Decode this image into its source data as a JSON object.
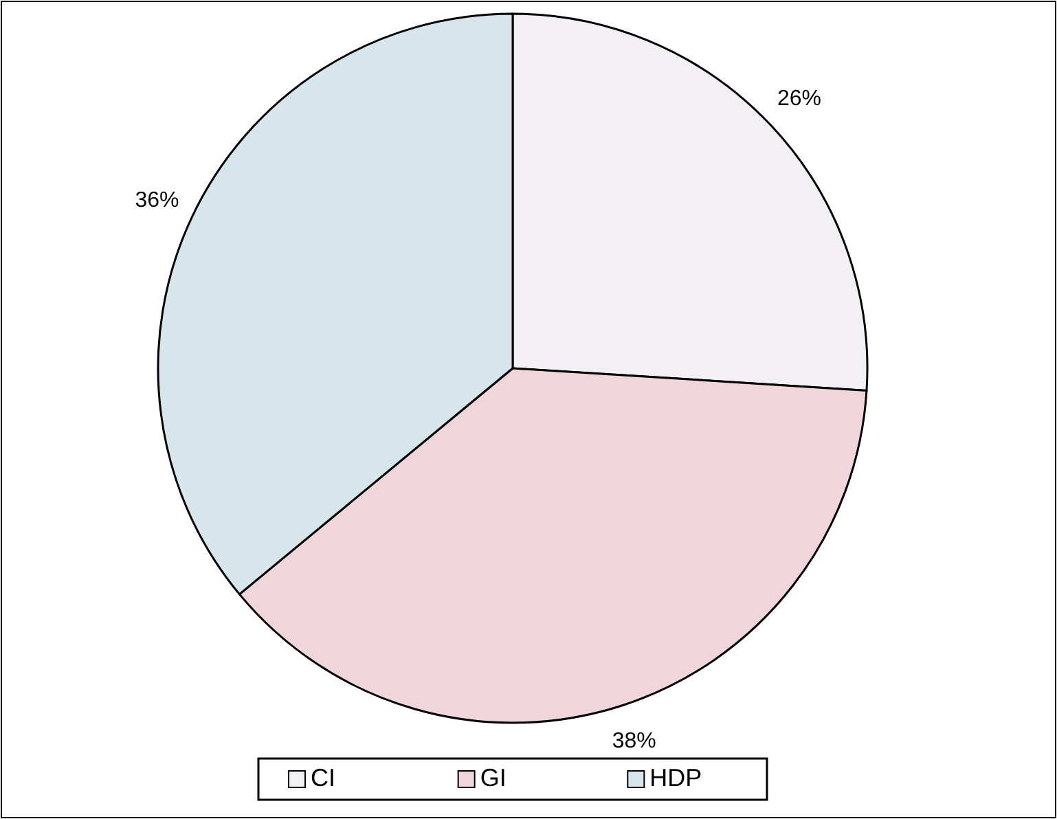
{
  "chart_data": {
    "type": "pie",
    "categories": [
      "CI",
      "GI",
      "HDP"
    ],
    "values": [
      26,
      38,
      36
    ],
    "colors": [
      "#f3f0f5",
      "#f0d6da",
      "#d6e6ec"
    ],
    "value_labels": [
      "26%",
      "38%",
      "36%"
    ],
    "legend": "bottom"
  }
}
